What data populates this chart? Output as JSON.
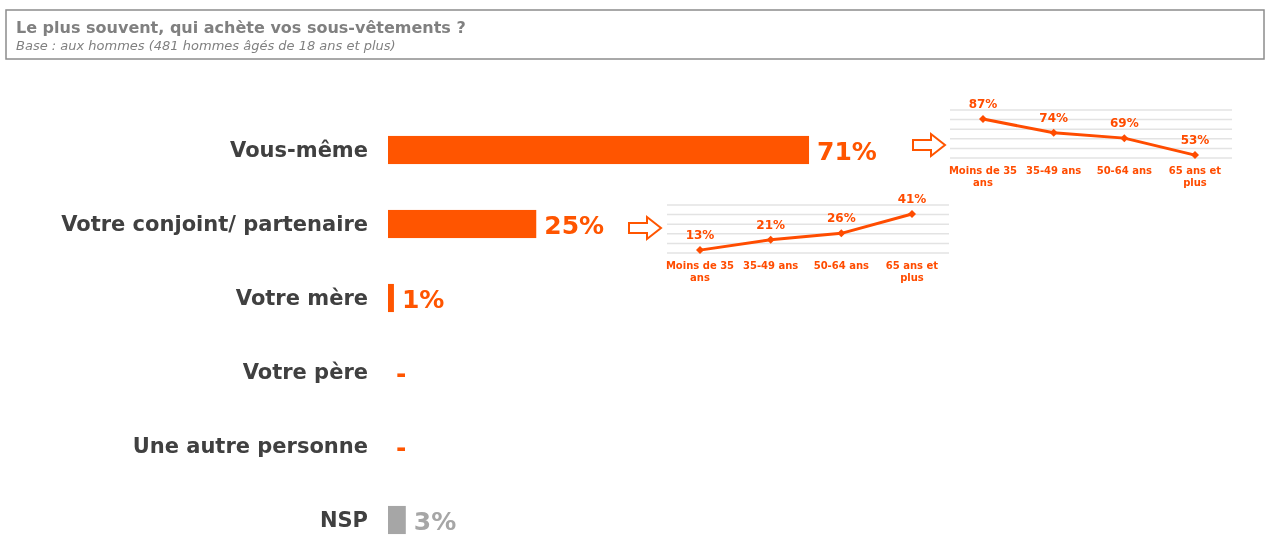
{
  "chart_data": [
    {
      "type": "bar",
      "orientation": "horizontal",
      "title": "Le plus souvent, qui achète vos sous-vêtements ?",
      "subtitle": "Base : aux hommes (481 hommes âgés de 18 ans et plus)",
      "categories": [
        "Vous-même",
        "Votre conjoint/ partenaire",
        "Votre mère",
        "Votre père",
        "Une autre personne",
        "NSP"
      ],
      "values": [
        71,
        25,
        1,
        0,
        0,
        3
      ],
      "value_labels": [
        "71%",
        "25%",
        "1%",
        "-",
        "-",
        "3%"
      ],
      "colors": [
        "#ff5500",
        "#ff5500",
        "#ff5500",
        "#ff5500",
        "#ff5500",
        "#a6a6a6"
      ]
    },
    {
      "type": "line",
      "categories": [
        "Moins de 35 ans",
        "35-49 ans",
        "50-64 ans",
        "65 ans et plus"
      ],
      "series": [
        {
          "color": "#ff4c00",
          "values": [
            13,
            21,
            26,
            41
          ],
          "value_labels": [
            "13%",
            "21%",
            "26%",
            "41%"
          ]
        }
      ],
      "marker": "diamond",
      "grid": true
    },
    {
      "type": "line",
      "categories": [
        "Moins de 35 ans",
        "35-49 ans",
        "50-64 ans",
        "65 ans et plus"
      ],
      "series": [
        {
          "color": "#ff4c00",
          "values": [
            87,
            74,
            69,
            53
          ],
          "value_labels": [
            "87%",
            "74%",
            "69%",
            "53%"
          ]
        }
      ],
      "marker": "diamond",
      "grid": true
    }
  ]
}
